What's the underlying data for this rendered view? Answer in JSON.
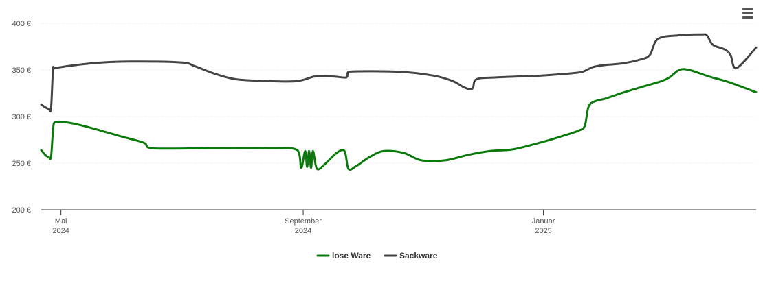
{
  "menu_icon": "hamburger-menu-icon",
  "chart_data": {
    "type": "line",
    "title": "",
    "xlabel": "",
    "ylabel": "",
    "ylim": [
      200,
      400
    ],
    "y_ticks": [
      {
        "value": 400,
        "label": "400 €"
      },
      {
        "value": 350,
        "label": "350 €"
      },
      {
        "value": 300,
        "label": "300 €"
      },
      {
        "value": 250,
        "label": "250 €"
      },
      {
        "value": 200,
        "label": "200 €"
      }
    ],
    "xlim": [
      "2024-04-21",
      "2025-04-19"
    ],
    "x_ticks": [
      {
        "date": "2024-05-01",
        "line1": "Mai",
        "line2": "2024"
      },
      {
        "date": "2024-09-01",
        "line1": "September",
        "line2": "2024"
      },
      {
        "date": "2025-01-01",
        "line1": "Januar",
        "line2": "2025"
      }
    ],
    "grid": true,
    "legend_position": "bottom-center",
    "series": [
      {
        "name": "lose Ware",
        "color": "#0a7a0a",
        "points": [
          [
            "2024-04-21",
            264
          ],
          [
            "2024-04-23",
            259
          ],
          [
            "2024-04-25",
            256
          ],
          [
            "2024-04-26",
            257
          ],
          [
            "2024-04-27",
            285
          ],
          [
            "2024-04-28",
            294
          ],
          [
            "2024-05-06",
            293
          ],
          [
            "2024-05-16",
            288
          ],
          [
            "2024-05-31",
            279
          ],
          [
            "2024-06-12",
            272
          ],
          [
            "2024-06-16",
            266
          ],
          [
            "2024-07-15",
            266
          ],
          [
            "2024-08-15",
            266
          ],
          [
            "2024-08-29",
            264
          ],
          [
            "2024-08-31",
            245
          ],
          [
            "2024-09-02",
            263
          ],
          [
            "2024-09-03",
            246
          ],
          [
            "2024-09-04",
            263
          ],
          [
            "2024-09-05",
            245
          ],
          [
            "2024-09-06",
            263
          ],
          [
            "2024-09-08",
            244
          ],
          [
            "2024-09-12",
            249
          ],
          [
            "2024-09-18",
            261
          ],
          [
            "2024-09-22",
            263
          ],
          [
            "2024-09-24",
            244
          ],
          [
            "2024-09-28",
            247
          ],
          [
            "2024-10-05",
            257
          ],
          [
            "2024-10-12",
            263
          ],
          [
            "2024-10-22",
            261
          ],
          [
            "2024-10-31",
            253
          ],
          [
            "2024-11-12",
            253
          ],
          [
            "2024-11-24",
            259
          ],
          [
            "2024-12-05",
            263
          ],
          [
            "2024-12-17",
            265
          ],
          [
            "2025-01-01",
            273
          ],
          [
            "2025-01-12",
            280
          ],
          [
            "2025-01-19",
            285
          ],
          [
            "2025-01-22",
            290
          ],
          [
            "2025-01-24",
            311
          ],
          [
            "2025-01-28",
            317
          ],
          [
            "2025-02-01",
            319
          ],
          [
            "2025-02-11",
            326
          ],
          [
            "2025-02-22",
            333
          ],
          [
            "2025-03-02",
            338
          ],
          [
            "2025-03-06",
            342
          ],
          [
            "2025-03-11",
            350
          ],
          [
            "2025-03-16",
            350
          ],
          [
            "2025-03-26",
            343
          ],
          [
            "2025-04-05",
            337
          ],
          [
            "2025-04-19",
            326
          ]
        ]
      },
      {
        "name": "Sackware",
        "color": "#444444",
        "points": [
          [
            "2024-04-21",
            313
          ],
          [
            "2024-04-23",
            310
          ],
          [
            "2024-04-25",
            308
          ],
          [
            "2024-04-26",
            309
          ],
          [
            "2024-04-27",
            350
          ],
          [
            "2024-04-28",
            352
          ],
          [
            "2024-05-16",
            357
          ],
          [
            "2024-06-05",
            359
          ],
          [
            "2024-07-01",
            358
          ],
          [
            "2024-07-08",
            354
          ],
          [
            "2024-07-18",
            346
          ],
          [
            "2024-07-29",
            340
          ],
          [
            "2024-08-15",
            338
          ],
          [
            "2024-08-29",
            338
          ],
          [
            "2024-09-07",
            343
          ],
          [
            "2024-09-16",
            343
          ],
          [
            "2024-09-23",
            342
          ],
          [
            "2024-09-24",
            348
          ],
          [
            "2024-10-20",
            348
          ],
          [
            "2024-11-06",
            344
          ],
          [
            "2024-11-16",
            338
          ],
          [
            "2024-11-22",
            331
          ],
          [
            "2024-11-26",
            330
          ],
          [
            "2024-11-28",
            340
          ],
          [
            "2024-12-08",
            342
          ],
          [
            "2024-12-31",
            344
          ],
          [
            "2025-01-18",
            347
          ],
          [
            "2025-01-22",
            349
          ],
          [
            "2025-01-26",
            353
          ],
          [
            "2025-01-31",
            355
          ],
          [
            "2025-02-10",
            357
          ],
          [
            "2025-02-19",
            361
          ],
          [
            "2025-02-24",
            366
          ],
          [
            "2025-02-28",
            383
          ],
          [
            "2025-03-10",
            387
          ],
          [
            "2025-03-22",
            388
          ],
          [
            "2025-03-25",
            387
          ],
          [
            "2025-03-28",
            377
          ],
          [
            "2025-04-03",
            372
          ],
          [
            "2025-04-06",
            366
          ],
          [
            "2025-04-09",
            352
          ],
          [
            "2025-04-19",
            374
          ]
        ]
      }
    ]
  }
}
